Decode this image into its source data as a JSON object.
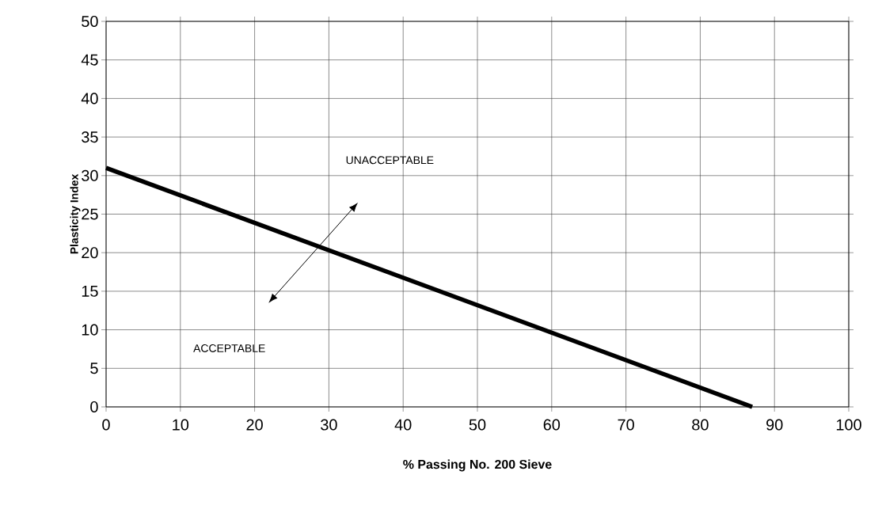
{
  "chart_data": {
    "type": "line",
    "xlabel": "% Passing No. 200 Sieve",
    "ylabel": "Plasticity Index",
    "x": [
      0,
      87
    ],
    "values": [
      31,
      0
    ],
    "color": "#000000",
    "xlim": [
      0,
      100
    ],
    "xticks": [
      0,
      10,
      20,
      30,
      40,
      50,
      60,
      70,
      80,
      90,
      100
    ],
    "ylim": [
      0,
      50
    ],
    "yticks": [
      0,
      5,
      10,
      15,
      20,
      25,
      30,
      35,
      40,
      45,
      50
    ],
    "grid": true,
    "marker": "none",
    "line_style": "solid",
    "annotations": [
      "UNACCEPTABLE",
      "ACCEPTABLE"
    ]
  }
}
